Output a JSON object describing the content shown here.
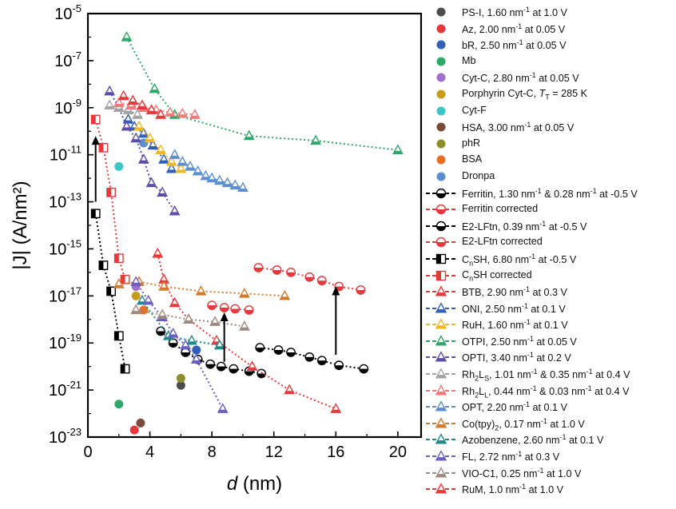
{
  "chart_data": {
    "type": "scatter",
    "xlabel": "d (nm)",
    "ylabel": "|J| (A/nm²)",
    "xlim": [
      0,
      21.5
    ],
    "ylim_log10": [
      -23,
      -5
    ],
    "y_scale": "log",
    "x_ticks": [
      "0",
      "4",
      "8",
      "12",
      "16",
      "20"
    ],
    "y_ticks": [
      {
        "exp": -5,
        "base": "10",
        "sup": "-5"
      },
      {
        "exp": -7,
        "base": "10",
        "sup": "-7"
      },
      {
        "exp": -9,
        "base": "10",
        "sup": "-9"
      },
      {
        "exp": -11,
        "base": "10",
        "sup": "-11"
      },
      {
        "exp": -13,
        "base": "10",
        "sup": "-13"
      },
      {
        "exp": -15,
        "base": "10",
        "sup": "-15"
      },
      {
        "exp": -17,
        "base": "10",
        "sup": "-17"
      },
      {
        "exp": -19,
        "base": "10",
        "sup": "-19"
      },
      {
        "exp": -21,
        "base": "10",
        "sup": "-21"
      },
      {
        "exp": -23,
        "base": "10",
        "sup": "-23"
      }
    ],
    "legend_position": "right-outside",
    "series": [
      {
        "name": "PS-I, 1.60 nm⁻¹ at 1.0 V",
        "label_html": "PS-I, 1.60 nm<sup>-1</sup> at 1.0 V",
        "marker": "circle",
        "color": "#4d4d4d",
        "x": [
          6.0
        ],
        "y": [
          -20.8
        ]
      },
      {
        "name": "Az, 2.00 nm⁻¹ at 0.05 V",
        "label_html": "Az, 2.00 nm<sup>-1</sup> at 0.05 V",
        "marker": "circle",
        "color": "#e8383c",
        "x": [
          3.0
        ],
        "y": [
          -22.7
        ]
      },
      {
        "name": "bR, 2.50 nm⁻¹ at 0.05 V",
        "label_html": "bR, 2.50 nm<sup>-1</sup> at 0.05 V",
        "marker": "circle",
        "color": "#2f5fb8",
        "x": [
          7.0
        ],
        "y": [
          -19.3
        ]
      },
      {
        "name": "Mb",
        "label_html": "Mb",
        "marker": "circle",
        "color": "#2ea86a",
        "x": [
          2.0
        ],
        "y": [
          -21.6
        ]
      },
      {
        "name": "Cyt-C, 2.80 nm⁻¹ at 0.05 V",
        "label_html": "Cyt-C, 2.80 nm<sup>-1</sup> at 0.05 V",
        "marker": "circle",
        "color": "#a26fcc",
        "x": [
          3.1
        ],
        "y": [
          -16.6
        ]
      },
      {
        "name": "Porphyrin Cyt-C, TT = 285 K",
        "label_html": "Porphyrin Cyt-C, <i>T</i><sub>T</sub> = 285 K",
        "marker": "circle",
        "color": "#c99a1c",
        "x": [
          3.1
        ],
        "y": [
          -17.0
        ]
      },
      {
        "name": "Cyt-F",
        "label_html": "Cyt-F",
        "marker": "circle",
        "color": "#3cc6c6",
        "x": [
          2.0
        ],
        "y": [
          -11.5
        ]
      },
      {
        "name": "HSA, 3.00 nm⁻¹ at 0.05 V",
        "label_html": "HSA, 3.00 nm<sup>-1</sup> at 0.05 V",
        "marker": "circle",
        "color": "#7a4a3a",
        "x": [
          3.4
        ],
        "y": [
          -22.4
        ]
      },
      {
        "name": "phR",
        "label_html": "phR",
        "marker": "circle",
        "color": "#8e8e2c",
        "x": [
          6.0
        ],
        "y": [
          -20.5
        ]
      },
      {
        "name": "BSA",
        "label_html": "BSA",
        "marker": "circle",
        "color": "#e86e24",
        "x": [
          3.6
        ],
        "y": [
          -17.6
        ]
      },
      {
        "name": "Dronpa",
        "label_html": "Dronpa",
        "marker": "circle",
        "color": "#5b8fd0",
        "x": [
          3.6
        ],
        "y": [
          -10.5
        ]
      },
      {
        "name": "Ferritin, 1.30 nm⁻¹ & 0.28 nm⁻¹ at -0.5 V",
        "label_html": "Ferritin, 1.30 nm<sup>-1</sup> &amp; 0.28 nm<sup>-1</sup> at -0.5 V",
        "marker": "halfcircle",
        "color": "#000000",
        "line": true,
        "x": [
          4.7,
          5.5,
          6.3,
          7.1,
          7.9,
          8.6,
          9.4,
          10.4,
          11.2
        ],
        "y": [
          -18.5,
          -19.0,
          -19.4,
          -19.7,
          -19.9,
          -20.0,
          -20.1,
          -20.2,
          -20.3
        ]
      },
      {
        "name": "Ferritin corrected",
        "label_html": "Ferritin corrected",
        "marker": "halfcircle",
        "color": "#e8383c",
        "line": true,
        "x": [
          8.0,
          8.8,
          9.5,
          10.4
        ],
        "y": [
          -17.4,
          -17.5,
          -17.55,
          -17.6
        ]
      },
      {
        "name": "E2-LFtn, 0.39 nm⁻¹ at -0.5 V",
        "label_html": "E2-LFtn, 0.39 nm<sup>-1</sup> at -0.5 V",
        "marker": "halfcircle",
        "color": "#000000",
        "line": true,
        "x": [
          11.1,
          12.3,
          13.1,
          14.3,
          15.1,
          16.2,
          17.8
        ],
        "y": [
          -19.2,
          -19.3,
          -19.4,
          -19.6,
          -19.75,
          -19.95,
          -20.1
        ]
      },
      {
        "name": "E2-LFtn corrected",
        "label_html": "E2-LFtn corrected",
        "marker": "halfcircle",
        "color": "#e8383c",
        "line": true,
        "x": [
          11.0,
          12.2,
          13.1,
          14.3,
          15.1,
          16.2,
          17.6
        ],
        "y": [
          -15.8,
          -15.9,
          -16.0,
          -16.2,
          -16.35,
          -16.6,
          -16.75
        ]
      },
      {
        "name": "CnSH, 6.80 nm⁻¹ at -0.5 V",
        "label_html": "C<sub>n</sub>SH, 6.80 nm<sup>-1</sup> at -0.5 V",
        "marker": "halfsquare",
        "color": "#000000",
        "line": true,
        "x": [
          0.5,
          1.0,
          1.5,
          2.0,
          2.4
        ],
        "y": [
          -13.5,
          -15.7,
          -16.8,
          -18.7,
          -20.1
        ]
      },
      {
        "name": "CnSH corrected",
        "label_html": "C<sub>n</sub>SH corrected",
        "marker": "halfsquare",
        "color": "#e8383c",
        "line": true,
        "x": [
          0.5,
          1.0,
          1.5,
          2.0,
          2.4
        ],
        "y": [
          -9.5,
          -10.7,
          -12.6,
          -15.4,
          -16.3
        ]
      },
      {
        "name": "BTB, 2.90 nm⁻¹ at 0.3 V",
        "label_html": "BTB, 2.90 nm<sup>-1</sup> at 0.3 V",
        "marker": "triangle",
        "color": "#e8383c",
        "line": true,
        "x": [
          4.5,
          4.9,
          5.6,
          6.5,
          8.3,
          10.6,
          13.0,
          16.0
        ],
        "y": [
          -15.2,
          -16.3,
          -17.3,
          -18.0,
          -18.9,
          -20.0,
          -21.0,
          -21.8
        ]
      },
      {
        "name": "ONI, 2.50 nm⁻¹ at 0.1 V",
        "label_html": "ONI, 2.50 nm<sup>-1</sup> at 0.1 V",
        "marker": "triangle",
        "color": "#2f5fb8",
        "line": true,
        "x": [
          2.6,
          3.0,
          3.6,
          4.2,
          4.9,
          5.4
        ],
        "y": [
          -9.5,
          -9.8,
          -10.1,
          -10.6,
          -11.2,
          -11.6
        ]
      },
      {
        "name": "RuH, 1.60 nm⁻¹ at 0.1 V",
        "label_html": "RuH, 1.60 nm<sup>-1</sup> at 0.1 V",
        "marker": "triangle",
        "color": "#f2b820",
        "line": true,
        "x": [
          3.3,
          4.0,
          4.7,
          5.4,
          6.0
        ],
        "y": [
          -9.8,
          -10.3,
          -10.8,
          -11.3,
          -11.6
        ]
      },
      {
        "name": "OTPI, 2.50 nm⁻¹ at 0.05 V",
        "label_html": "OTPI, 2.50 nm<sup>-1</sup> at 0.05 V",
        "marker": "triangle",
        "color": "#2ea86a",
        "line": true,
        "x": [
          2.5,
          4.3,
          5.6,
          10.4,
          14.7,
          20.0
        ],
        "y": [
          -6.0,
          -8.2,
          -9.3,
          -10.2,
          -10.4,
          -10.8
        ]
      },
      {
        "name": "OPTI, 3.40 nm⁻¹ at 0.2 V",
        "label_html": "OPTI, 3.40 nm<sup>-1</sup> at 0.2 V",
        "marker": "triangle",
        "color": "#5a4fa8",
        "line": true,
        "x": [
          1.4,
          2.0,
          2.5,
          3.1,
          3.6,
          4.1,
          4.8,
          5.6
        ],
        "y": [
          -8.3,
          -9.0,
          -9.8,
          -10.3,
          -11.2,
          -12.2,
          -12.6,
          -13.4
        ]
      },
      {
        "name": "Rh2LS, 1.01 nm⁻¹ & 0.35 nm⁻¹ at 0.4 V",
        "label_html": "Rh<sub>2</sub>L<sub>S</sub>, 1.01 nm<sup>-1</sup> &amp; 0.35 nm<sup>-1</sup> at 0.4 V",
        "marker": "triangle",
        "color": "#a3a3a3",
        "line": true,
        "x": [
          1.4,
          2.0,
          2.6,
          3.2
        ],
        "y": [
          -8.9,
          -9.0,
          -9.1,
          -9.3
        ]
      },
      {
        "name": "Rh2LL, 0.44 nm⁻¹ & 0.03 nm⁻¹ at 0.4 V",
        "label_html": "Rh<sub>2</sub>L<sub>L</sub>, 0.44 nm<sup>-1</sup> &amp; 0.03 nm<sup>-1</sup> at 0.4 V",
        "marker": "triangle",
        "color": "#f07a7a",
        "line": true,
        "x": [
          2.0,
          2.8,
          3.6,
          4.4,
          5.3,
          6.1,
          6.9
        ],
        "y": [
          -8.8,
          -8.9,
          -9.0,
          -9.1,
          -9.2,
          -9.25,
          -9.3
        ]
      },
      {
        "name": "OPT, 2.20 nm⁻¹ at 0.1 V",
        "label_html": "OPT, 2.20 nm<sup>-1</sup> at 0.1 V",
        "marker": "triangle",
        "color": "#5b8fd0",
        "line": true,
        "x": [
          5.6,
          6.1,
          6.6,
          7.1,
          7.6,
          8.0,
          8.5,
          9.0,
          9.5,
          10.0
        ],
        "y": [
          -11.0,
          -11.3,
          -11.5,
          -11.7,
          -11.9,
          -12.0,
          -12.1,
          -12.2,
          -12.3,
          -12.4
        ]
      },
      {
        "name": "Co(tpy)2, 0.17 nm⁻¹ at 1.0 V",
        "label_html": "Co(tpy)<sub>2</sub>, 0.17 nm<sup>-1</sup> at 1.0 V",
        "marker": "triangle",
        "color": "#d47a2c",
        "line": true,
        "x": [
          2.0,
          3.3,
          4.9,
          7.3,
          10.1,
          12.7
        ],
        "y": [
          -16.5,
          -16.4,
          -16.6,
          -16.8,
          -16.9,
          -17.0
        ]
      },
      {
        "name": "Azobenzene, 2.60 nm⁻¹ at 0.1 V",
        "label_html": "Azobenzene, 2.60 nm<sup>-1</sup> at 0.1 V",
        "marker": "triangle",
        "color": "#1e8a8a",
        "line": true,
        "x": [
          3.5,
          5.2,
          6.7,
          8.5
        ],
        "y": [
          -17.2,
          -18.7,
          -18.9,
          -19.1
        ]
      },
      {
        "name": "FL, 2.72 nm⁻¹ at 0.3 V",
        "label_html": "FL, 2.72 nm<sup>-1</sup> at 0.3 V",
        "marker": "triangle",
        "color": "#6a5fc2",
        "line": true,
        "x": [
          3.1,
          3.9,
          4.8,
          5.5,
          6.3,
          7.0,
          8.7
        ],
        "y": [
          -16.4,
          -17.2,
          -17.9,
          -18.6,
          -19.1,
          -19.7,
          -21.8
        ]
      },
      {
        "name": "VIO-C1, 0.25 nm⁻¹ at 1.0 V",
        "label_html": "VIO-C1, 0.25 nm<sup>-1</sup> at 1.0 V",
        "marker": "triangle",
        "color": "#a08a80",
        "line": true,
        "x": [
          3.1,
          4.8,
          6.5,
          8.2,
          10.1
        ],
        "y": [
          -17.6,
          -17.8,
          -18.0,
          -18.1,
          -18.3
        ]
      },
      {
        "name": "RuM, 1.0 nm⁻¹ at 1.0 V",
        "label_html": "RuM, 1.0 nm<sup>-1</sup> at 1.0 V",
        "marker": "triangle",
        "color": "#e8383c",
        "line": true,
        "x": [
          2.3,
          2.9,
          3.5,
          4.1,
          4.7
        ],
        "y": [
          -8.5,
          -8.7,
          -8.9,
          -9.1,
          -9.3
        ]
      }
    ],
    "arrows": [
      {
        "x": 0.5,
        "from": -13.0,
        "to": -10.2
      },
      {
        "x": 8.8,
        "from": -19.8,
        "to": -17.7
      },
      {
        "x": 16.0,
        "from": -19.5,
        "to": -16.6
      }
    ]
  }
}
